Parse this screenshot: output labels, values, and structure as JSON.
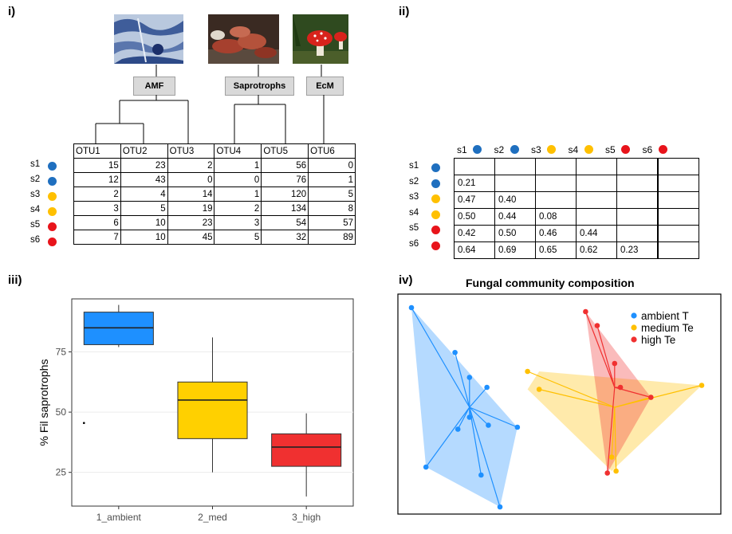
{
  "panels": {
    "i": "i)",
    "ii": "ii)",
    "iii": "iii)",
    "iv": "iv)"
  },
  "colors": {
    "blue": "#1f6fbf",
    "yellow": "#ffc000",
    "red": "#e8141b"
  },
  "groups": {
    "amf": "AMF",
    "sap": "Saprotrophs",
    "ecm": "EcM"
  },
  "otu_table": {
    "headers": [
      "OTU1",
      "OTU2",
      "OTU3",
      "OTU4",
      "OTU5",
      "OTU6"
    ],
    "rows": [
      {
        "label": "s1",
        "color": "blue",
        "values": [
          "15",
          "23",
          "2",
          "1",
          "56",
          "0"
        ]
      },
      {
        "label": "s2",
        "color": "blue",
        "values": [
          "12",
          "43",
          "0",
          "0",
          "76",
          "1"
        ]
      },
      {
        "label": "s3",
        "color": "yellow",
        "values": [
          "2",
          "4",
          "14",
          "1",
          "120",
          "5"
        ]
      },
      {
        "label": "s4",
        "color": "yellow",
        "values": [
          "3",
          "5",
          "19",
          "2",
          "134",
          "8"
        ]
      },
      {
        "label": "s5",
        "color": "red",
        "values": [
          "6",
          "10",
          "23",
          "3",
          "54",
          "57"
        ]
      },
      {
        "label": "s6",
        "color": "red",
        "values": [
          "7",
          "10",
          "45",
          "5",
          "32",
          "89"
        ]
      }
    ]
  },
  "dist_table": {
    "headers": [
      "s1",
      "s2",
      "s3",
      "s4",
      "s5",
      "s6"
    ],
    "header_colors": [
      "blue",
      "blue",
      "yellow",
      "yellow",
      "red",
      "red"
    ],
    "rows": [
      {
        "label": "s1",
        "color": "blue",
        "values": [
          "",
          "",
          "",
          "",
          "",
          ""
        ]
      },
      {
        "label": "s2",
        "color": "blue",
        "values": [
          "0.21",
          "",
          "",
          "",
          "",
          ""
        ]
      },
      {
        "label": "s3",
        "color": "yellow",
        "values": [
          "0.47",
          "0.40",
          "",
          "",
          "",
          ""
        ]
      },
      {
        "label": "s4",
        "color": "yellow",
        "values": [
          "0.50",
          "0.44",
          "0.08",
          "",
          "",
          ""
        ]
      },
      {
        "label": "s5",
        "color": "red",
        "values": [
          "0.42",
          "0.50",
          "0.46",
          "0.44",
          "",
          ""
        ]
      },
      {
        "label": "s6",
        "color": "red",
        "values": [
          "0.64",
          "0.69",
          "0.65",
          "0.62",
          "0.23",
          ""
        ]
      }
    ]
  },
  "chart_data": [
    {
      "type": "box",
      "ylabel": "% Fil saprotrophs",
      "categories": [
        "1_ambient",
        "2_med",
        "3_high"
      ],
      "yticks": [
        25,
        50,
        75
      ],
      "ylim": [
        11,
        97
      ],
      "boxes": [
        {
          "category": "1_ambient",
          "color": "#1e90ff",
          "whisker_low": 77,
          "q1": 78,
          "median": 85,
          "q3": 91.5,
          "whisker_high": 94.5,
          "outliers": [
            45.5
          ]
        },
        {
          "category": "2_med",
          "color": "#ffd000",
          "whisker_low": 25,
          "q1": 39,
          "median": 55,
          "q3": 62.5,
          "whisker_high": 81,
          "outliers": []
        },
        {
          "category": "3_high",
          "color": "#f03030",
          "whisker_low": 15,
          "q1": 27.5,
          "median": 35.5,
          "q3": 41,
          "whisker_high": 49.5,
          "outliers": []
        }
      ]
    },
    {
      "type": "scatter",
      "title": "Fungal community composition",
      "legend": [
        "ambient T",
        "medium Te",
        "high Te"
      ],
      "legend_position": "top-right",
      "groups": [
        {
          "name": "ambient T",
          "color": "#1e90ff",
          "centroid": [
            0.2,
            0.5
          ],
          "points": [
            [
              0.0,
              1.0
            ],
            [
              0.15,
              0.775
            ],
            [
              0.2,
              0.65
            ],
            [
              0.26,
              0.6
            ],
            [
              0.2,
              0.45
            ],
            [
              0.265,
              0.41
            ],
            [
              0.365,
              0.4
            ],
            [
              0.16,
              0.39
            ],
            [
              0.05,
              0.2
            ],
            [
              0.24,
              0.16
            ],
            [
              0.305,
              0.0
            ]
          ],
          "hull": [
            [
              0.0,
              1.0
            ],
            [
              0.365,
              0.4
            ],
            [
              0.305,
              0.0
            ],
            [
              0.05,
              0.2
            ]
          ]
        },
        {
          "name": "medium Te",
          "color": "#ffc000",
          "centroid": [
            0.7,
            0.5
          ],
          "points": [
            [
              0.4,
              0.68
            ],
            [
              0.44,
              0.59
            ],
            [
              1.0,
              0.61
            ],
            [
              0.69,
              0.25
            ],
            [
              0.825,
              0.55
            ],
            [
              0.705,
              0.18
            ]
          ],
          "hull": [
            [
              0.44,
              0.68
            ],
            [
              1.0,
              0.61
            ],
            [
              0.69,
              0.18
            ],
            [
              0.4,
              0.59
            ]
          ]
        },
        {
          "name": "high Te",
          "color": "#f03030",
          "centroid": [
            0.7,
            0.6
          ],
          "points": [
            [
              0.6,
              0.98
            ],
            [
              0.64,
              0.91
            ],
            [
              0.72,
              0.6
            ],
            [
              0.7,
              0.72
            ],
            [
              0.825,
              0.55
            ],
            [
              0.675,
              0.17
            ]
          ],
          "hull": [
            [
              0.6,
              0.98
            ],
            [
              0.825,
              0.55
            ],
            [
              0.675,
              0.17
            ]
          ]
        }
      ]
    }
  ]
}
